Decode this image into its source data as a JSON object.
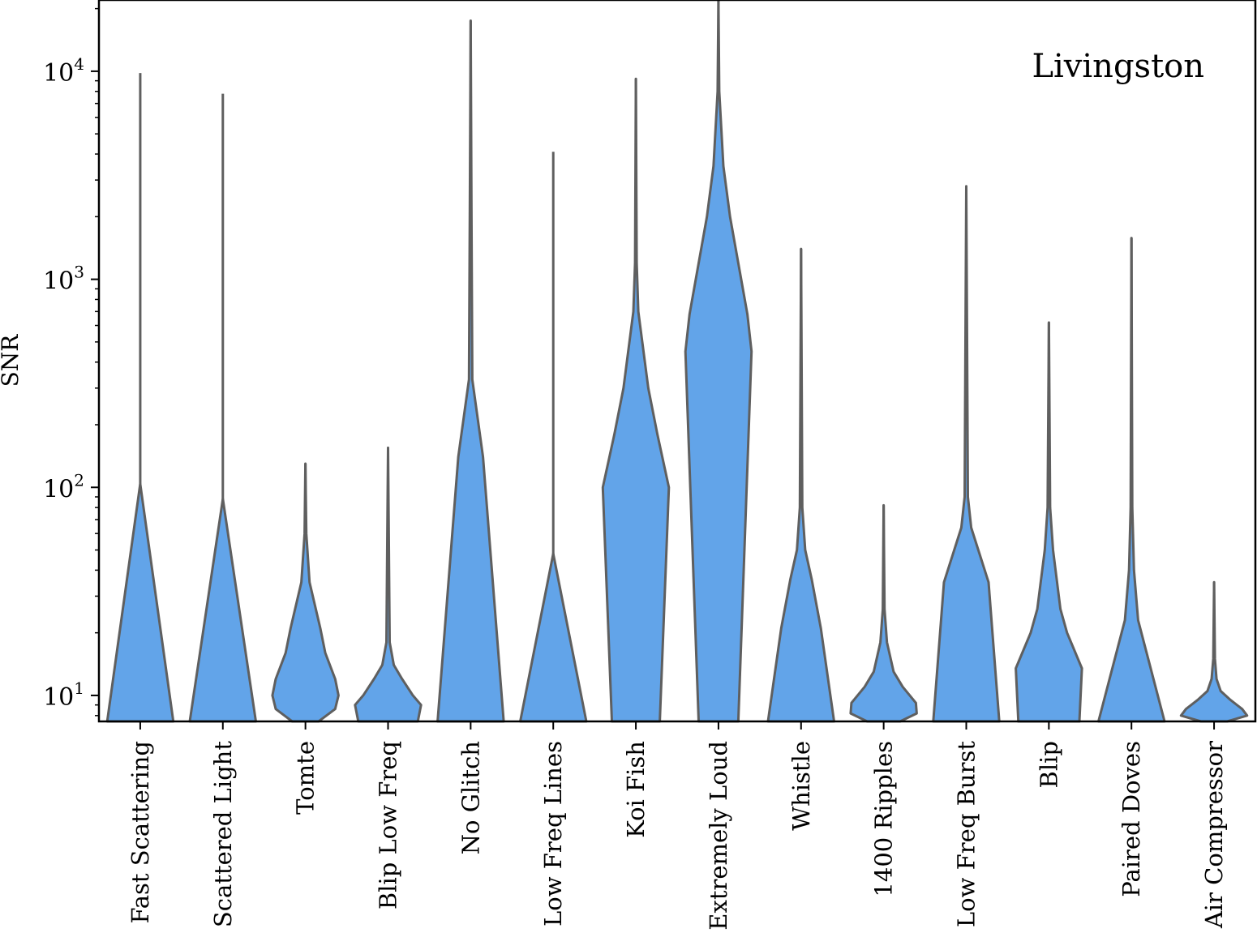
{
  "chart_data": {
    "type": "violin",
    "annotation": "Livingston",
    "ylabel": "SNR",
    "yscale": "log",
    "ylim": [
      7.5,
      22000
    ],
    "y_ticks": [
      {
        "value": 10,
        "base": "10",
        "exp": "1"
      },
      {
        "value": 100,
        "base": "10",
        "exp": "2"
      },
      {
        "value": 1000,
        "base": "10",
        "exp": "3"
      },
      {
        "value": 10000,
        "base": "10",
        "exp": "4"
      }
    ],
    "fill_color": "#62a4e9",
    "edge_color": "#5f5f5f",
    "categories": [
      {
        "name": "Fast Scattering",
        "max": 9800,
        "profile": [
          [
            7.5,
            0.4
          ],
          [
            104,
            0.0
          ]
        ]
      },
      {
        "name": "Scattered Light",
        "max": 7800,
        "profile": [
          [
            7.5,
            0.4
          ],
          [
            88,
            0.0
          ]
        ]
      },
      {
        "name": "Tomte",
        "max": 130,
        "profile": [
          [
            7.5,
            0.16
          ],
          [
            8.6,
            0.36
          ],
          [
            10,
            0.4
          ],
          [
            12,
            0.36
          ],
          [
            16,
            0.24
          ],
          [
            21,
            0.18
          ],
          [
            35,
            0.05
          ],
          [
            60,
            0.01
          ],
          [
            130,
            0.0
          ]
        ]
      },
      {
        "name": "Blip Low Freq",
        "max": 155,
        "profile": [
          [
            7.5,
            0.36
          ],
          [
            9,
            0.4
          ],
          [
            10,
            0.3
          ],
          [
            12,
            0.17
          ],
          [
            14,
            0.07
          ],
          [
            18,
            0.02
          ],
          [
            155,
            0.0
          ]
        ]
      },
      {
        "name": "No Glitch",
        "max": 17500,
        "profile": [
          [
            7.5,
            0.4
          ],
          [
            140,
            0.15
          ],
          [
            330,
            0.02
          ],
          [
            2000,
            0.01
          ],
          [
            17500,
            0.0
          ]
        ]
      },
      {
        "name": "Low Freq Lines",
        "max": 4100,
        "profile": [
          [
            7.5,
            0.4
          ],
          [
            48,
            0.0
          ]
        ]
      },
      {
        "name": "Koi Fish",
        "max": 9200,
        "profile": [
          [
            7.5,
            0.29
          ],
          [
            100,
            0.4
          ],
          [
            180,
            0.26
          ],
          [
            300,
            0.15
          ],
          [
            700,
            0.03
          ],
          [
            1200,
            0.01
          ],
          [
            9200,
            0.0
          ]
        ]
      },
      {
        "name": "Extremely Loud",
        "max": 22000,
        "profile": [
          [
            7.5,
            0.24
          ],
          [
            450,
            0.4
          ],
          [
            680,
            0.35
          ],
          [
            2000,
            0.14
          ],
          [
            3500,
            0.06
          ],
          [
            8000,
            0.01
          ],
          [
            22000,
            0.0
          ]
        ]
      },
      {
        "name": "Whistle",
        "max": 1400,
        "profile": [
          [
            7.5,
            0.4
          ],
          [
            21,
            0.24
          ],
          [
            36,
            0.13
          ],
          [
            50,
            0.05
          ],
          [
            80,
            0.015
          ],
          [
            1400,
            0.0
          ]
        ]
      },
      {
        "name": "1400 Ripples",
        "max": 82,
        "profile": [
          [
            7.5,
            0.2
          ],
          [
            8.2,
            0.4
          ],
          [
            9.2,
            0.39
          ],
          [
            11,
            0.23
          ],
          [
            13,
            0.12
          ],
          [
            18,
            0.04
          ],
          [
            26,
            0.01
          ],
          [
            82,
            0.0
          ]
        ]
      },
      {
        "name": "Low Freq Burst",
        "max": 2800,
        "profile": [
          [
            7.5,
            0.4
          ],
          [
            35,
            0.27
          ],
          [
            64,
            0.06
          ],
          [
            90,
            0.02
          ],
          [
            2800,
            0.0
          ]
        ]
      },
      {
        "name": "Blip",
        "max": 620,
        "profile": [
          [
            7.5,
            0.37
          ],
          [
            13.5,
            0.4
          ],
          [
            20,
            0.22
          ],
          [
            26,
            0.14
          ],
          [
            50,
            0.05
          ],
          [
            80,
            0.015
          ],
          [
            620,
            0.0
          ]
        ]
      },
      {
        "name": "Paired Doves",
        "max": 1580,
        "profile": [
          [
            7.5,
            0.4
          ],
          [
            23,
            0.08
          ],
          [
            40,
            0.03
          ],
          [
            80,
            0.01
          ],
          [
            1580,
            0.0
          ]
        ]
      },
      {
        "name": "Air Compressor",
        "max": 35,
        "profile": [
          [
            7.5,
            0.16
          ],
          [
            8.0,
            0.4
          ],
          [
            8.6,
            0.34
          ],
          [
            9.5,
            0.2
          ],
          [
            10.5,
            0.08
          ],
          [
            12,
            0.03
          ],
          [
            15,
            0.01
          ],
          [
            35,
            0.0
          ]
        ]
      }
    ]
  }
}
